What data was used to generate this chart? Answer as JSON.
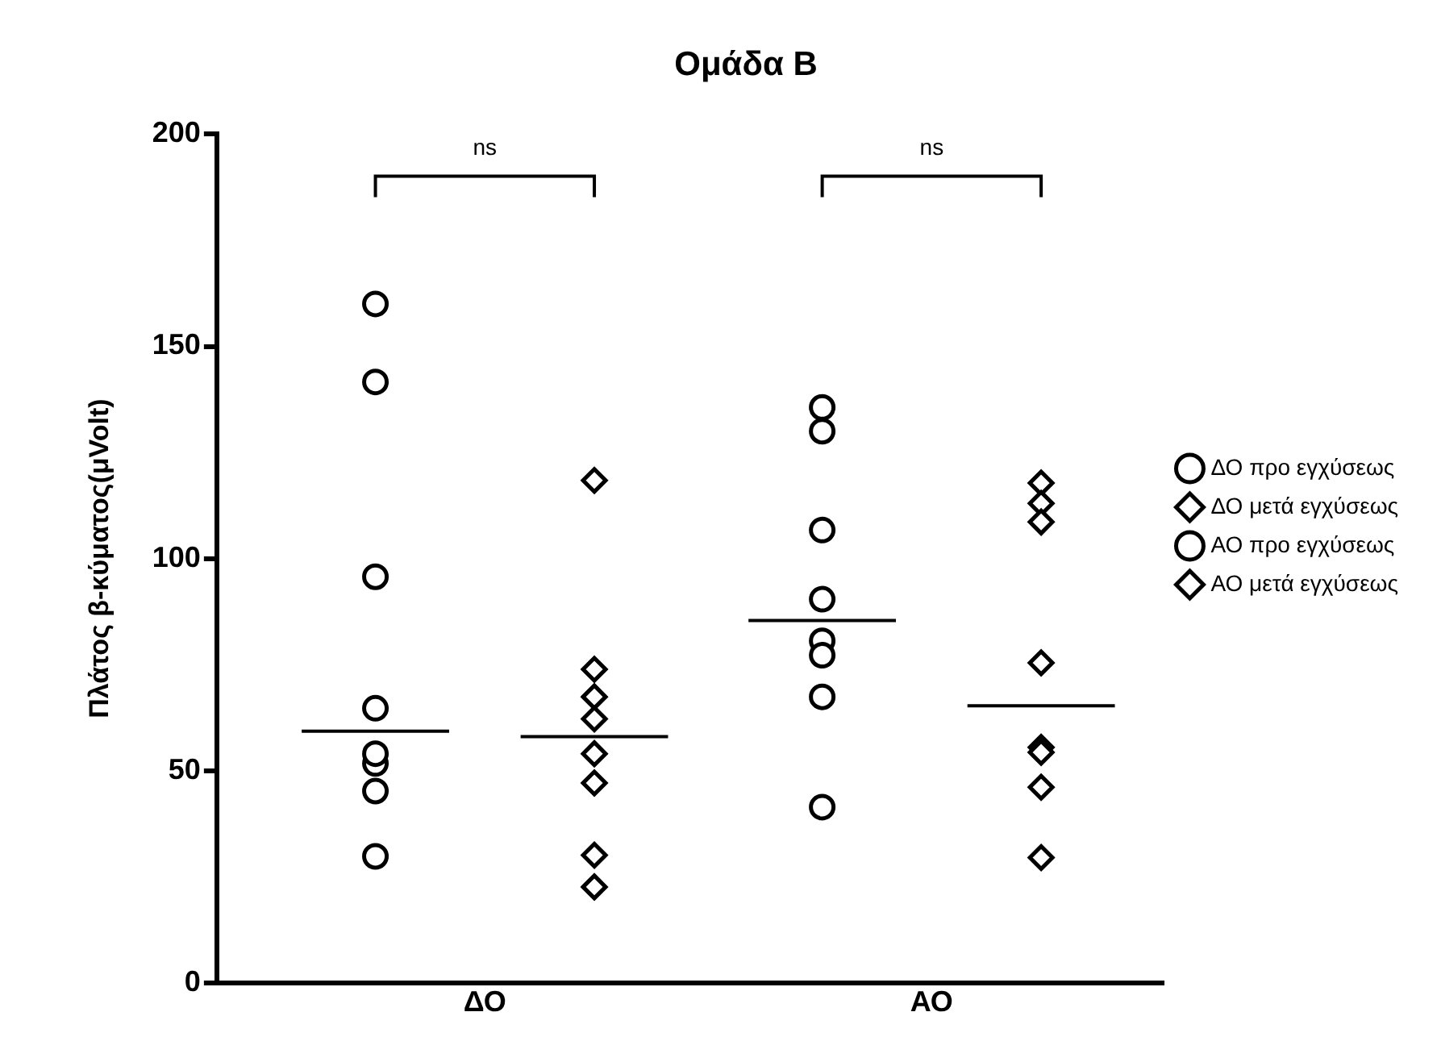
{
  "chart_data": {
    "type": "scatter",
    "title": "Ομάδα Β",
    "ylabel": "Πλάτος β-κύματος(μVolt)",
    "categories": [
      "ΔΟ",
      "ΑΟ"
    ],
    "ylim": [
      0,
      200
    ],
    "yticks": [
      0,
      50,
      100,
      150,
      200
    ],
    "grid": false,
    "legend": "right",
    "series": [
      {
        "name": "ΔΟ προ εγχύσεως",
        "color": "#000000",
        "marker": "circle",
        "x": [
          "ΔΟ",
          "ΔΟ",
          "ΔΟ",
          "ΔΟ",
          "ΔΟ",
          "ΔΟ",
          "ΔΟ",
          "ΔΟ"
        ],
        "values": [
          160,
          141.6,
          95.7,
          64.7,
          51.7,
          54,
          45.2,
          29.8
        ]
      },
      {
        "name": "ΔΟ μετά εγχύσεως",
        "color": "#000000",
        "marker": "diamond",
        "x": [
          "ΔΟ",
          "ΔΟ",
          "ΔΟ",
          "ΔΟ",
          "ΔΟ",
          "ΔΟ",
          "ΔΟ",
          "ΔΟ"
        ],
        "values": [
          118.4,
          73.9,
          67.4,
          62.2,
          54,
          47.1,
          30.1,
          22.6
        ]
      },
      {
        "name": "ΑΟ προ εγχύσεως",
        "color": "#000000",
        "marker": "circle",
        "x": [
          "ΑΟ",
          "ΑΟ",
          "ΑΟ",
          "ΑΟ",
          "ΑΟ",
          "ΑΟ",
          "ΑΟ",
          "ΑΟ"
        ],
        "values": [
          135.6,
          130,
          106.7,
          90.4,
          80.6,
          77.2,
          67.4,
          41.4
        ]
      },
      {
        "name": "ΑΟ μετά εγχύσεως",
        "color": "#000000",
        "marker": "diamond",
        "x": [
          "ΑΟ",
          "ΑΟ",
          "ΑΟ",
          "ΑΟ",
          "ΑΟ",
          "ΑΟ",
          "ΑΟ",
          "ΑΟ"
        ],
        "values": [
          117.8,
          113,
          108.6,
          75.4,
          55.5,
          54.3,
          46.1,
          29.5
        ]
      },
      {
        "type": "box",
        "color": "#000000",
        "boxes": [
          {
            "low": 59.3,
            "q1": 59.3,
            "median": 59.3,
            "q3": 59.3,
            "high": 59.3
          },
          {
            "low": 85.4,
            "q1": 85.4,
            "median": 85.4,
            "q3": 85.4,
            "high": 85.4
          }
        ]
      },
      {
        "type": "box",
        "color": "#000000",
        "boxes": [
          {
            "low": 58,
            "q1": 58,
            "median": 58,
            "q3": 58,
            "high": 58
          },
          {
            "low": 65.3,
            "q1": 65.3,
            "median": 65.3,
            "q3": 65.3,
            "high": 65.3
          }
        ]
      }
    ],
    "annotations": [
      "ns",
      "ns"
    ]
  }
}
